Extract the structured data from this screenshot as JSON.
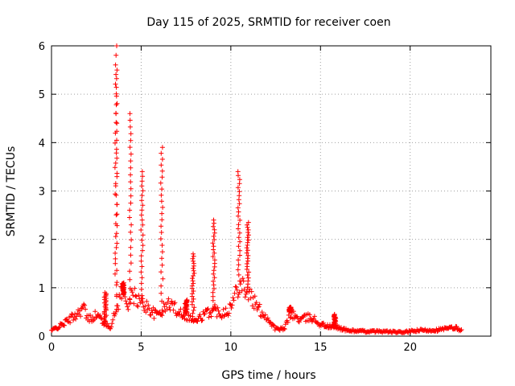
{
  "chart_data": {
    "type": "scatter",
    "title": "Day 115 of 2025, SRMTID for receiver coen",
    "xlabel": "GPS time / hours",
    "ylabel": "SRMTID / TECUs",
    "xlim": [
      0,
      24.5
    ],
    "ylim": [
      0,
      6
    ],
    "xticks": [
      0,
      5,
      10,
      15,
      20
    ],
    "yticks": [
      0,
      1,
      2,
      3,
      4,
      5,
      6
    ],
    "grid": true,
    "marker": "+",
    "series": [
      {
        "name": "SRMTID",
        "color": "#ff0000",
        "envelope": [
          [
            0.0,
            0.12
          ],
          [
            0.5,
            0.22
          ],
          [
            1.0,
            0.35
          ],
          [
            1.5,
            0.5
          ],
          [
            1.8,
            0.62
          ],
          [
            2.0,
            0.35
          ],
          [
            2.5,
            0.45
          ],
          [
            2.8,
            0.35
          ],
          [
            3.0,
            0.25
          ],
          [
            3.3,
            0.2
          ],
          [
            3.6,
            0.55
          ],
          [
            3.9,
            0.95
          ],
          [
            4.2,
            0.7
          ],
          [
            4.6,
            0.85
          ],
          [
            5.0,
            0.7
          ],
          [
            5.4,
            0.6
          ],
          [
            5.8,
            0.45
          ],
          [
            6.2,
            0.55
          ],
          [
            6.6,
            0.7
          ],
          [
            7.0,
            0.55
          ],
          [
            7.5,
            0.45
          ],
          [
            8.0,
            0.3
          ],
          [
            8.5,
            0.45
          ],
          [
            9.0,
            0.55
          ],
          [
            9.5,
            0.5
          ],
          [
            10.0,
            0.6
          ],
          [
            10.5,
            1.2
          ],
          [
            11.0,
            0.9
          ],
          [
            11.5,
            0.6
          ],
          [
            12.0,
            0.4
          ],
          [
            12.5,
            0.15
          ],
          [
            13.0,
            0.15
          ],
          [
            13.3,
            0.5
          ],
          [
            13.8,
            0.35
          ],
          [
            14.5,
            0.4
          ],
          [
            15.0,
            0.25
          ],
          [
            15.5,
            0.2
          ],
          [
            16.0,
            0.18
          ],
          [
            16.5,
            0.12
          ],
          [
            17.5,
            0.1
          ],
          [
            18.5,
            0.1
          ],
          [
            19.5,
            0.08
          ],
          [
            20.5,
            0.12
          ],
          [
            21.5,
            0.13
          ],
          [
            22.5,
            0.18
          ],
          [
            22.9,
            0.12
          ]
        ],
        "spikes": [
          {
            "x": 3.6,
            "top": 5.5
          },
          {
            "x": 3.6,
            "top": 6.0
          },
          {
            "x": 4.4,
            "top": 4.6
          },
          {
            "x": 5.05,
            "top": 3.4
          },
          {
            "x": 6.15,
            "top": 3.9
          },
          {
            "x": 7.9,
            "top": 1.7
          },
          {
            "x": 9.05,
            "top": 2.4
          },
          {
            "x": 10.45,
            "top": 3.4
          },
          {
            "x": 10.95,
            "top": 2.35
          },
          {
            "x": 3.0,
            "top": 0.9
          },
          {
            "x": 4.0,
            "top": 1.1
          },
          {
            "x": 7.5,
            "top": 0.75
          },
          {
            "x": 13.3,
            "top": 0.6
          },
          {
            "x": 15.8,
            "top": 0.45
          }
        ]
      }
    ]
  }
}
